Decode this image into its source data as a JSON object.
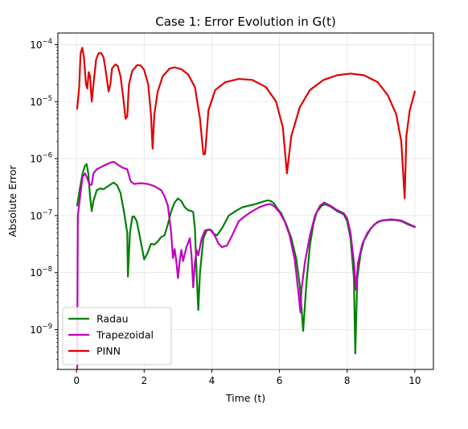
{
  "chart_data": {
    "type": "line",
    "title": "Case 1: Error Evolution in G(t)",
    "xlabel": "Time (t)",
    "ylabel": "Absolute Error",
    "xlim": [
      -0.55,
      10.55
    ],
    "ylim": [
      2e-10,
      0.00016
    ],
    "yscale": "log",
    "grid": true,
    "legend_position": "lower-left",
    "x_ticks": [
      0,
      2,
      4,
      6,
      8,
      10
    ],
    "x_tick_labels": [
      "0",
      "2",
      "4",
      "6",
      "8",
      "10"
    ],
    "y_ticks": [
      1e-09,
      1e-08,
      1e-07,
      1e-06,
      1e-05,
      0.0001
    ],
    "y_tick_labels": [
      {
        "base": "10",
        "exp": "−9"
      },
      {
        "base": "10",
        "exp": "−8"
      },
      {
        "base": "10",
        "exp": "−7"
      },
      {
        "base": "10",
        "exp": "−6"
      },
      {
        "base": "10",
        "exp": "−5"
      },
      {
        "base": "10",
        "exp": "−4"
      }
    ],
    "series": [
      {
        "name": "Radau",
        "color": "#008000",
        "points": [
          [
            0.02,
            1.5e-07
          ],
          [
            0.1,
            3e-07
          ],
          [
            0.18,
            5.5e-07
          ],
          [
            0.25,
            7.5e-07
          ],
          [
            0.3,
            8e-07
          ],
          [
            0.35,
            5.5e-07
          ],
          [
            0.4,
            2.2e-07
          ],
          [
            0.45,
            1.2e-07
          ],
          [
            0.5,
            1.8e-07
          ],
          [
            0.6,
            2.8e-07
          ],
          [
            0.7,
            3e-07
          ],
          [
            0.8,
            2.9e-07
          ],
          [
            0.9,
            3.2e-07
          ],
          [
            1.0,
            3.5e-07
          ],
          [
            1.1,
            3.8e-07
          ],
          [
            1.2,
            3.4e-07
          ],
          [
            1.3,
            2.5e-07
          ],
          [
            1.4,
            1.2e-07
          ],
          [
            1.5,
            5e-08
          ],
          [
            1.52,
            8.5e-09
          ],
          [
            1.58,
            5e-08
          ],
          [
            1.65,
            9.5e-08
          ],
          [
            1.7,
            9.7e-08
          ],
          [
            1.78,
            8e-08
          ],
          [
            1.9,
            3.5e-08
          ],
          [
            2.0,
            1.7e-08
          ],
          [
            2.1,
            2.2e-08
          ],
          [
            2.2,
            3.2e-08
          ],
          [
            2.3,
            3.1e-08
          ],
          [
            2.4,
            3.5e-08
          ],
          [
            2.5,
            4.2e-08
          ],
          [
            2.6,
            4.5e-08
          ],
          [
            2.7,
            7e-08
          ],
          [
            2.8,
            1.2e-07
          ],
          [
            2.9,
            1.7e-07
          ],
          [
            3.0,
            2e-07
          ],
          [
            3.1,
            1.8e-07
          ],
          [
            3.2,
            1.4e-07
          ],
          [
            3.3,
            1.25e-07
          ],
          [
            3.4,
            1.2e-07
          ],
          [
            3.45,
            1.15e-07
          ],
          [
            3.5,
            6e-08
          ],
          [
            3.55,
            1e-08
          ],
          [
            3.6,
            2.2e-09
          ],
          [
            3.65,
            1e-08
          ],
          [
            3.75,
            4e-08
          ],
          [
            3.85,
            5.5e-08
          ],
          [
            3.95,
            5.7e-08
          ],
          [
            4.05,
            4.8e-08
          ],
          [
            4.15,
            4.5e-08
          ],
          [
            4.3,
            6e-08
          ],
          [
            4.5,
            1e-07
          ],
          [
            4.7,
            1.2e-07
          ],
          [
            4.9,
            1.4e-07
          ],
          [
            5.1,
            1.5e-07
          ],
          [
            5.3,
            1.6e-07
          ],
          [
            5.5,
            1.75e-07
          ],
          [
            5.65,
            1.85e-07
          ],
          [
            5.75,
            1.8e-07
          ],
          [
            5.85,
            1.6e-07
          ],
          [
            5.95,
            1.3e-07
          ],
          [
            6.05,
            1.1e-07
          ],
          [
            6.2,
            7e-08
          ],
          [
            6.35,
            4e-08
          ],
          [
            6.5,
            1.7e-08
          ],
          [
            6.6,
            6e-09
          ],
          [
            6.7,
            9.5e-10
          ],
          [
            6.8,
            7e-09
          ],
          [
            6.9,
            3e-08
          ],
          [
            7.0,
            7e-08
          ],
          [
            7.1,
            1.15e-07
          ],
          [
            7.25,
            1.5e-07
          ],
          [
            7.35,
            1.58e-07
          ],
          [
            7.5,
            1.45e-07
          ],
          [
            7.7,
            1.2e-07
          ],
          [
            7.9,
            1.05e-07
          ],
          [
            8.0,
            8e-08
          ],
          [
            8.1,
            4e-08
          ],
          [
            8.2,
            8e-09
          ],
          [
            8.24,
            3.8e-10
          ],
          [
            8.3,
            8e-09
          ],
          [
            8.4,
            2.2e-08
          ],
          [
            8.5,
            3.7e-08
          ],
          [
            8.7,
            6e-08
          ],
          [
            8.9,
            7.8e-08
          ],
          [
            9.1,
            8.3e-08
          ],
          [
            9.4,
            8.4e-08
          ],
          [
            9.6,
            8e-08
          ],
          [
            9.8,
            7e-08
          ],
          [
            10.0,
            6.3e-08
          ]
        ]
      },
      {
        "name": "Trapezoidal",
        "color": "#bf00bf",
        "points": [
          [
            0.02,
            2e-10
          ],
          [
            0.04,
            1e-07
          ],
          [
            0.1,
            2e-07
          ],
          [
            0.18,
            4.8e-07
          ],
          [
            0.25,
            5.5e-07
          ],
          [
            0.32,
            4.5e-07
          ],
          [
            0.38,
            3.5e-07
          ],
          [
            0.45,
            3.5e-07
          ],
          [
            0.5,
            5.5e-07
          ],
          [
            0.6,
            6.5e-07
          ],
          [
            0.8,
            7.5e-07
          ],
          [
            1.0,
            8.5e-07
          ],
          [
            1.1,
            8.8e-07
          ],
          [
            1.2,
            8e-07
          ],
          [
            1.35,
            7e-07
          ],
          [
            1.5,
            6.5e-07
          ],
          [
            1.6,
            4e-07
          ],
          [
            1.7,
            3.6e-07
          ],
          [
            1.9,
            3.7e-07
          ],
          [
            2.1,
            3.6e-07
          ],
          [
            2.3,
            3.3e-07
          ],
          [
            2.5,
            2.8e-07
          ],
          [
            2.6,
            2.2e-07
          ],
          [
            2.7,
            1.5e-07
          ],
          [
            2.8,
            5e-08
          ],
          [
            2.85,
            1.8e-08
          ],
          [
            2.9,
            2.6e-08
          ],
          [
            2.95,
            1.6e-08
          ],
          [
            3.0,
            8e-09
          ],
          [
            3.05,
            1.6e-08
          ],
          [
            3.1,
            2.5e-08
          ],
          [
            3.15,
            1.6e-08
          ],
          [
            3.25,
            2.8e-08
          ],
          [
            3.35,
            4e-08
          ],
          [
            3.4,
            2e-08
          ],
          [
            3.45,
            5.5e-09
          ],
          [
            3.5,
            1.5e-08
          ],
          [
            3.55,
            2.5e-08
          ],
          [
            3.6,
            2e-08
          ],
          [
            3.7,
            4e-08
          ],
          [
            3.8,
            5.5e-08
          ],
          [
            3.9,
            5.7e-08
          ],
          [
            4.0,
            5.5e-08
          ],
          [
            4.1,
            4.3e-08
          ],
          [
            4.2,
            3.2e-08
          ],
          [
            4.3,
            2.8e-08
          ],
          [
            4.45,
            3e-08
          ],
          [
            4.6,
            4.5e-08
          ],
          [
            4.8,
            8e-08
          ],
          [
            5.0,
            1e-07
          ],
          [
            5.2,
            1.2e-07
          ],
          [
            5.4,
            1.4e-07
          ],
          [
            5.6,
            1.55e-07
          ],
          [
            5.72,
            1.6e-07
          ],
          [
            5.85,
            1.45e-07
          ],
          [
            6.0,
            1.15e-07
          ],
          [
            6.15,
            8e-08
          ],
          [
            6.3,
            4.5e-08
          ],
          [
            6.45,
            1.7e-08
          ],
          [
            6.55,
            5e-09
          ],
          [
            6.62,
            2e-09
          ],
          [
            6.65,
            5e-09
          ],
          [
            6.75,
            1.5e-08
          ],
          [
            6.9,
            4.5e-08
          ],
          [
            7.05,
            1e-07
          ],
          [
            7.2,
            1.5e-07
          ],
          [
            7.32,
            1.7e-07
          ],
          [
            7.5,
            1.5e-07
          ],
          [
            7.7,
            1.25e-07
          ],
          [
            7.9,
            1.1e-07
          ],
          [
            8.0,
            9e-08
          ],
          [
            8.1,
            5e-08
          ],
          [
            8.2,
            1.5e-08
          ],
          [
            8.26,
            5e-09
          ],
          [
            8.32,
            1.5e-08
          ],
          [
            8.45,
            3.2e-08
          ],
          [
            8.6,
            5e-08
          ],
          [
            8.8,
            7e-08
          ],
          [
            9.0,
            8.2e-08
          ],
          [
            9.3,
            8.6e-08
          ],
          [
            9.6,
            8.2e-08
          ],
          [
            9.8,
            7.2e-08
          ],
          [
            10.0,
            6.4e-08
          ]
        ]
      },
      {
        "name": "PINN",
        "color": "#e00000",
        "points": [
          [
            0.02,
            7.5e-06
          ],
          [
            0.08,
            1.8e-05
          ],
          [
            0.12,
            7e-05
          ],
          [
            0.17,
            8.8e-05
          ],
          [
            0.22,
            6e-05
          ],
          [
            0.28,
            2e-05
          ],
          [
            0.32,
            1.7e-05
          ],
          [
            0.36,
            3.3e-05
          ],
          [
            0.4,
            2.8e-05
          ],
          [
            0.45,
            1e-05
          ],
          [
            0.5,
            2e-05
          ],
          [
            0.58,
            5.5e-05
          ],
          [
            0.65,
            7e-05
          ],
          [
            0.72,
            7.2e-05
          ],
          [
            0.8,
            6e-05
          ],
          [
            0.88,
            3e-05
          ],
          [
            0.95,
            1.5e-05
          ],
          [
            1.0,
            2e-05
          ],
          [
            1.05,
            3.8e-05
          ],
          [
            1.15,
            4.5e-05
          ],
          [
            1.22,
            4.2e-05
          ],
          [
            1.3,
            2.8e-05
          ],
          [
            1.38,
            1.2e-05
          ],
          [
            1.45,
            5e-06
          ],
          [
            1.5,
            5.5e-06
          ],
          [
            1.55,
            2e-05
          ],
          [
            1.65,
            3.5e-05
          ],
          [
            1.8,
            4.4e-05
          ],
          [
            1.9,
            4.3e-05
          ],
          [
            2.0,
            3.6e-05
          ],
          [
            2.12,
            2e-05
          ],
          [
            2.2,
            6e-06
          ],
          [
            2.25,
            1.5e-06
          ],
          [
            2.3,
            6e-06
          ],
          [
            2.4,
            1.5e-05
          ],
          [
            2.55,
            2.8e-05
          ],
          [
            2.75,
            3.8e-05
          ],
          [
            2.9,
            4e-05
          ],
          [
            3.1,
            3.7e-05
          ],
          [
            3.3,
            3e-05
          ],
          [
            3.5,
            1.8e-05
          ],
          [
            3.65,
            5e-06
          ],
          [
            3.75,
            1.2e-06
          ],
          [
            3.8,
            1.2e-06
          ],
          [
            3.9,
            7e-06
          ],
          [
            4.1,
            1.6e-05
          ],
          [
            4.4,
            2.2e-05
          ],
          [
            4.8,
            2.5e-05
          ],
          [
            5.2,
            2.4e-05
          ],
          [
            5.6,
            1.8e-05
          ],
          [
            5.9,
            1e-05
          ],
          [
            6.1,
            3.5e-06
          ],
          [
            6.22,
            5.5e-07
          ],
          [
            6.35,
            2.5e-06
          ],
          [
            6.6,
            8e-06
          ],
          [
            6.9,
            1.6e-05
          ],
          [
            7.3,
            2.4e-05
          ],
          [
            7.7,
            2.9e-05
          ],
          [
            8.1,
            3.1e-05
          ],
          [
            8.5,
            2.9e-05
          ],
          [
            8.9,
            2.2e-05
          ],
          [
            9.2,
            1.3e-05
          ],
          [
            9.45,
            6e-06
          ],
          [
            9.6,
            2e-06
          ],
          [
            9.7,
            2e-07
          ],
          [
            9.75,
            2.5e-06
          ],
          [
            9.85,
            7e-06
          ],
          [
            10.0,
            1.5e-05
          ]
        ]
      }
    ]
  }
}
